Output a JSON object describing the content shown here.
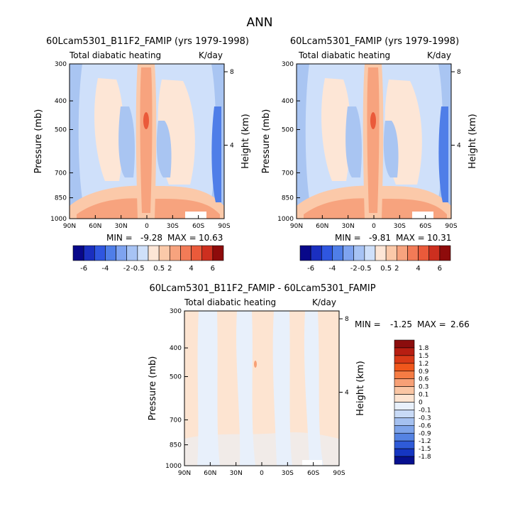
{
  "title": "ANN",
  "chart_data": [
    {
      "type": "heatmap",
      "id": "p1",
      "title": "60Lcam5301_B11F2_FAMIP (yrs 1979-1998)",
      "subtitle_left": "Total diabatic heating",
      "subtitle_right": "K/day",
      "xlabel": "",
      "ylabel": "Pressure (mb)",
      "ylabel_right": "Height (km)",
      "x_ticks": [
        "90N",
        "60N",
        "30N",
        "0",
        "30S",
        "60S",
        "90S"
      ],
      "y_ticks": [
        "300",
        "400",
        "500",
        "700",
        "850",
        "1000"
      ],
      "y_ticks_right": [
        "8",
        "4"
      ],
      "xlim": [
        90,
        -90
      ],
      "ylim": [
        1000,
        300
      ],
      "min_label": "MIN = ",
      "min_value": "-9.28",
      "max_label": "MAX = ",
      "max_value": "10.63",
      "colorbar_labels": [
        "-6",
        "-4",
        "-2",
        "-0.5",
        "0.5",
        "2",
        "4",
        "6"
      ]
    },
    {
      "type": "heatmap",
      "id": "p2",
      "title": "60Lcam5301_FAMIP (yrs 1979-1998)",
      "subtitle_left": "Total diabatic heating",
      "subtitle_right": "K/day",
      "xlabel": "",
      "ylabel": "Pressure (mb)",
      "ylabel_right": "Height (km)",
      "x_ticks": [
        "90N",
        "60N",
        "30N",
        "0",
        "30S",
        "60S",
        "90S"
      ],
      "y_ticks": [
        "300",
        "400",
        "500",
        "700",
        "850",
        "1000"
      ],
      "y_ticks_right": [
        "8",
        "4"
      ],
      "xlim": [
        90,
        -90
      ],
      "ylim": [
        1000,
        300
      ],
      "min_label": "MIN = ",
      "min_value": "-9.81",
      "max_label": "MAX = ",
      "max_value": "10.31",
      "colorbar_labels": [
        "-6",
        "-4",
        "-2",
        "-0.5",
        "0.5",
        "2",
        "4",
        "6"
      ]
    },
    {
      "type": "heatmap",
      "id": "p3",
      "title": "60Lcam5301_B11F2_FAMIP - 60Lcam5301_FAMIP",
      "subtitle_left": "Total diabatic heating",
      "subtitle_right": "K/day",
      "xlabel": "",
      "ylabel": "Pressure (mb)",
      "ylabel_right": "Height (km)",
      "x_ticks": [
        "90N",
        "60N",
        "30N",
        "0",
        "30S",
        "60S",
        "90S"
      ],
      "y_ticks": [
        "300",
        "400",
        "500",
        "700",
        "850",
        "1000"
      ],
      "y_ticks_right": [
        "8",
        "4"
      ],
      "xlim": [
        90,
        -90
      ],
      "ylim": [
        1000,
        300
      ],
      "min_label": "MIN = ",
      "min_value": "-1.25",
      "max_label": "MAX = ",
      "max_value": "2.66",
      "colorbar_labels": [
        "1.8",
        "1.5",
        "1.2",
        "0.9",
        "0.6",
        "0.3",
        "0.1",
        "0",
        "-0.1",
        "-0.3",
        "-0.6",
        "-0.9",
        "-1.2",
        "-1.5",
        "-1.8"
      ]
    }
  ],
  "colors": {
    "abs_scale": [
      "#08088a",
      "#1a2fc0",
      "#2f56e0",
      "#4f7ee8",
      "#7ea3f0",
      "#a7c3f4",
      "#cfe0fa",
      "#fde6d6",
      "#fbc9a9",
      "#f7a37e",
      "#f27b57",
      "#ea5a3a",
      "#cd2f1f",
      "#8e0b0b"
    ],
    "diff_scale": [
      "#8b0d0d",
      "#b71e12",
      "#d93a18",
      "#f0571c",
      "#f57c44",
      "#f7a076",
      "#fac6a4",
      "#fde4d1",
      "#e8f0fb",
      "#c8daf6",
      "#a5c1f0",
      "#7ea4ea",
      "#5583e3",
      "#2f5bd8",
      "#1536c2",
      "#06108f"
    ],
    "p_blue_outer": "#a9c5f2",
    "p_blue_mid": "#cfe0fa",
    "p_cream": "#fde6d6",
    "p_peach": "#fbc9a9",
    "p_orange": "#f7a37e",
    "p_red": "#ea5a3a",
    "p_deepblue": "#4f7ee8"
  }
}
